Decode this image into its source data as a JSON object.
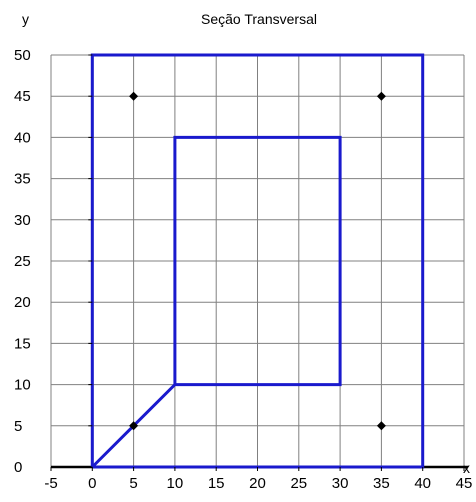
{
  "chart_data": {
    "type": "line",
    "title": "Seção Transversal",
    "xlabel": "x",
    "ylabel": "y",
    "xlim": [
      -5,
      45
    ],
    "ylim": [
      0,
      50
    ],
    "x_ticks": [
      -5,
      0,
      5,
      10,
      15,
      20,
      25,
      30,
      35,
      40,
      45
    ],
    "y_ticks": [
      0,
      5,
      10,
      15,
      20,
      25,
      30,
      35,
      40,
      45,
      50
    ],
    "grid": true,
    "colors": {
      "outline": "#1a1acd",
      "grid": "#808080",
      "points": "#000000",
      "axis": "#000000"
    },
    "series": [
      {
        "points": [
          [
            0,
            0
          ],
          [
            0,
            50
          ],
          [
            40,
            50
          ],
          [
            40,
            0
          ],
          [
            0,
            0
          ]
        ]
      },
      {
        "points": [
          [
            0,
            0
          ],
          [
            10,
            10
          ],
          [
            30,
            10
          ],
          [
            30,
            40
          ],
          [
            10,
            40
          ],
          [
            10,
            10
          ]
        ]
      }
    ],
    "markers": [
      [
        5,
        45
      ],
      [
        35,
        45
      ],
      [
        5,
        5
      ],
      [
        35,
        5
      ]
    ]
  }
}
